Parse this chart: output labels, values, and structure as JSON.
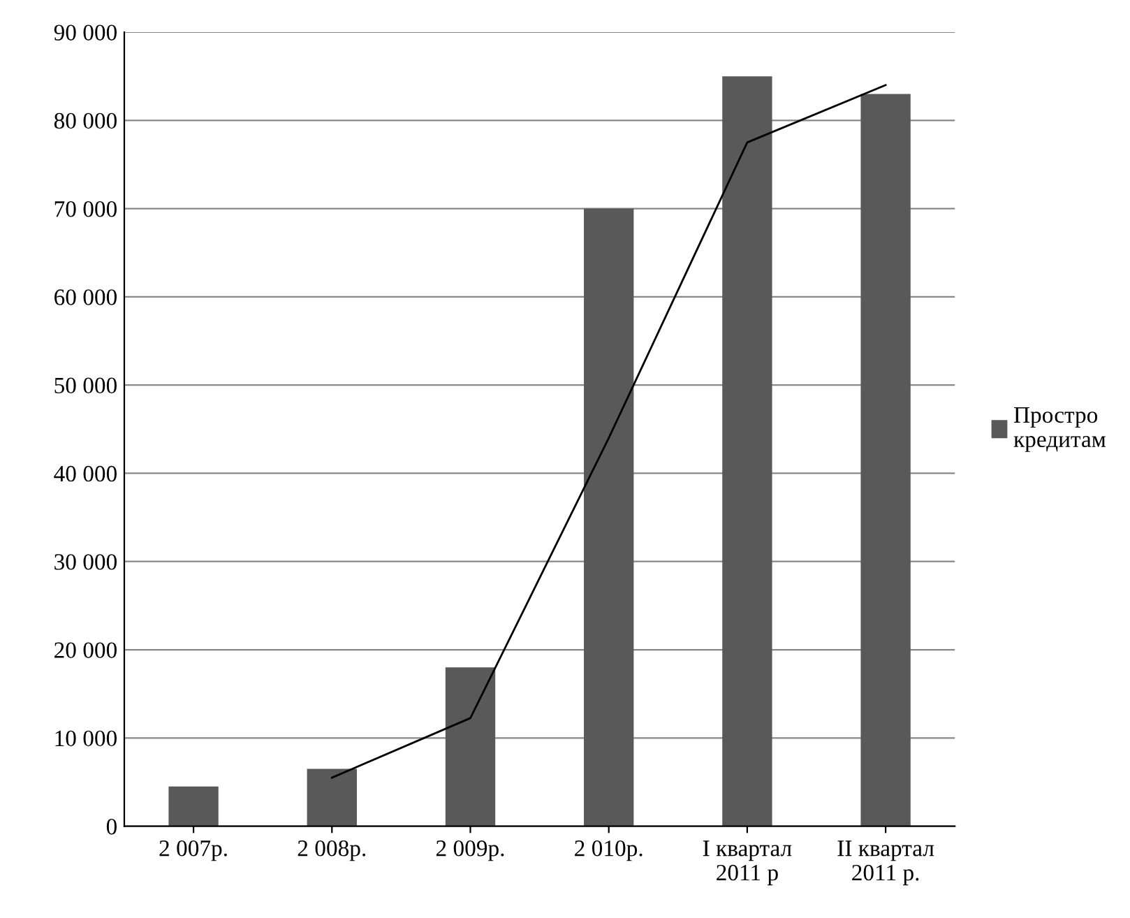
{
  "chart_data": {
    "type": "bar",
    "categories": [
      "2 007р.",
      "2 008р.",
      "2 009р.",
      "2 010р.",
      "I квартал\n2011 р",
      "II квартал\n2011 р."
    ],
    "series": [
      {
        "name": "Простро\nкредитам",
        "color": "#595959",
        "values": [
          4500,
          6500,
          18000,
          70000,
          85000,
          83000
        ]
      },
      {
        "type": "line",
        "color": "#000000",
        "values": [
          null,
          5500,
          12250,
          44000,
          77500,
          84000
        ]
      }
    ],
    "ylim": [
      0,
      90000
    ],
    "yticks": [
      0,
      {
        "value": 10000,
        "label": "10 000"
      },
      {
        "value": 20000,
        "label": "20 000"
      },
      {
        "value": 30000,
        "label": "30 000"
      },
      {
        "value": 40000,
        "label": "40 000"
      },
      {
        "value": 50000,
        "label": "50 000"
      },
      {
        "value": 60000,
        "label": "60 000"
      },
      {
        "value": 70000,
        "label": "70 000"
      },
      {
        "value": 80000,
        "label": "80 000"
      },
      {
        "value": 90000,
        "label": "90 000"
      }
    ],
    "grid": "y",
    "legend": "right"
  }
}
